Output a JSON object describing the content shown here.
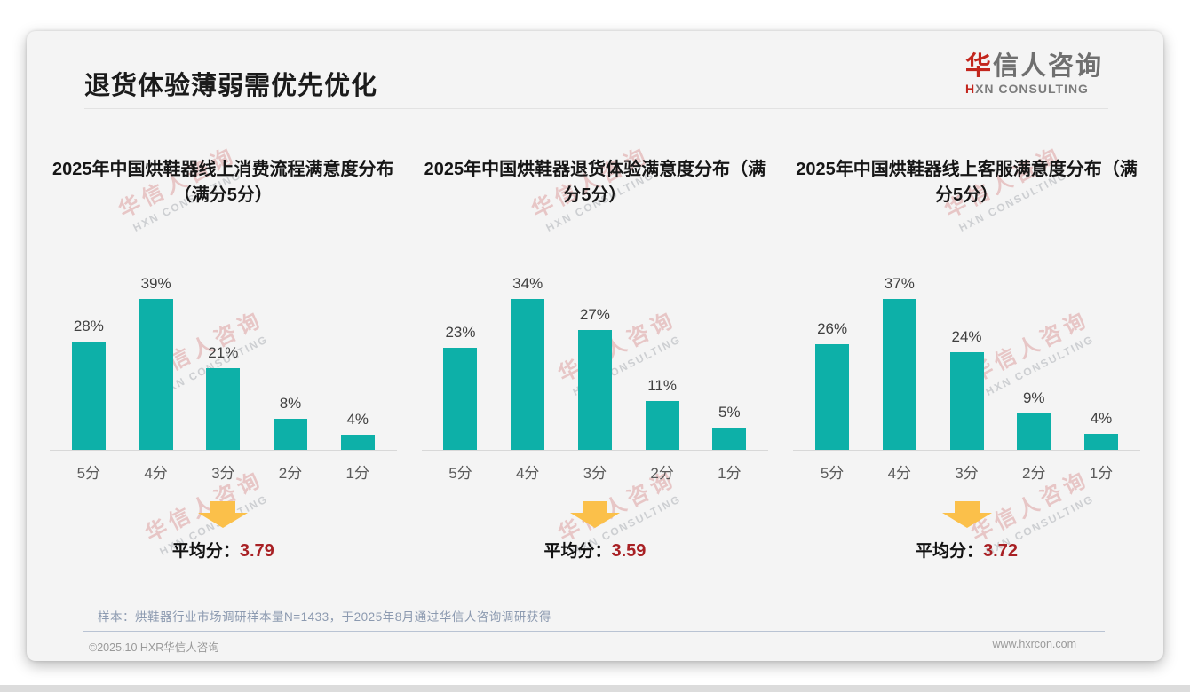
{
  "header": {
    "title": "退货体验薄弱需优先优化"
  },
  "logo": {
    "cn_first": "华",
    "cn_rest": "信人咨询",
    "en_first": "H",
    "en_rest": "XN CONSULTING"
  },
  "watermark": {
    "line1": "华信人咨询",
    "line2": "HXN CONSULTING"
  },
  "labels": {
    "average_prefix": "平均分："
  },
  "chart_data": [
    {
      "type": "bar",
      "title": "2025年中国烘鞋器线上消费流程满意度分布（满分5分）",
      "categories": [
        "5分",
        "4分",
        "3分",
        "2分",
        "1分"
      ],
      "values": [
        28,
        39,
        21,
        8,
        4
      ],
      "unit": "%",
      "average": "3.79",
      "bar_color": "#0db0a8",
      "ylim": [
        0,
        45
      ],
      "grid": false,
      "legend": "none"
    },
    {
      "type": "bar",
      "title": "2025年中国烘鞋器退货体验满意度分布（满分5分）",
      "categories": [
        "5分",
        "4分",
        "3分",
        "2分",
        "1分"
      ],
      "values": [
        23,
        34,
        27,
        11,
        5
      ],
      "unit": "%",
      "average": "3.59",
      "bar_color": "#0db0a8",
      "ylim": [
        0,
        45
      ],
      "grid": false,
      "legend": "none"
    },
    {
      "type": "bar",
      "title": "2025年中国烘鞋器线上客服满意度分布（满分5分）",
      "categories": [
        "5分",
        "4分",
        "3分",
        "2分",
        "1分"
      ],
      "values": [
        26,
        37,
        24,
        9,
        4
      ],
      "unit": "%",
      "average": "3.72",
      "bar_color": "#0db0a8",
      "ylim": [
        0,
        45
      ],
      "grid": false,
      "legend": "none"
    }
  ],
  "footnote": "样本：烘鞋器行业市场调研样本量N=1433，于2025年8月通过华信人咨询调研获得",
  "footer": {
    "left": "©2025.10 HXR华信人咨询",
    "right": "www.hxrcon.com"
  },
  "colors": {
    "bar": "#0db0a8",
    "arrow": "#fbc04a",
    "average_value": "#a82024",
    "card_bg": "#f4f4f4"
  }
}
